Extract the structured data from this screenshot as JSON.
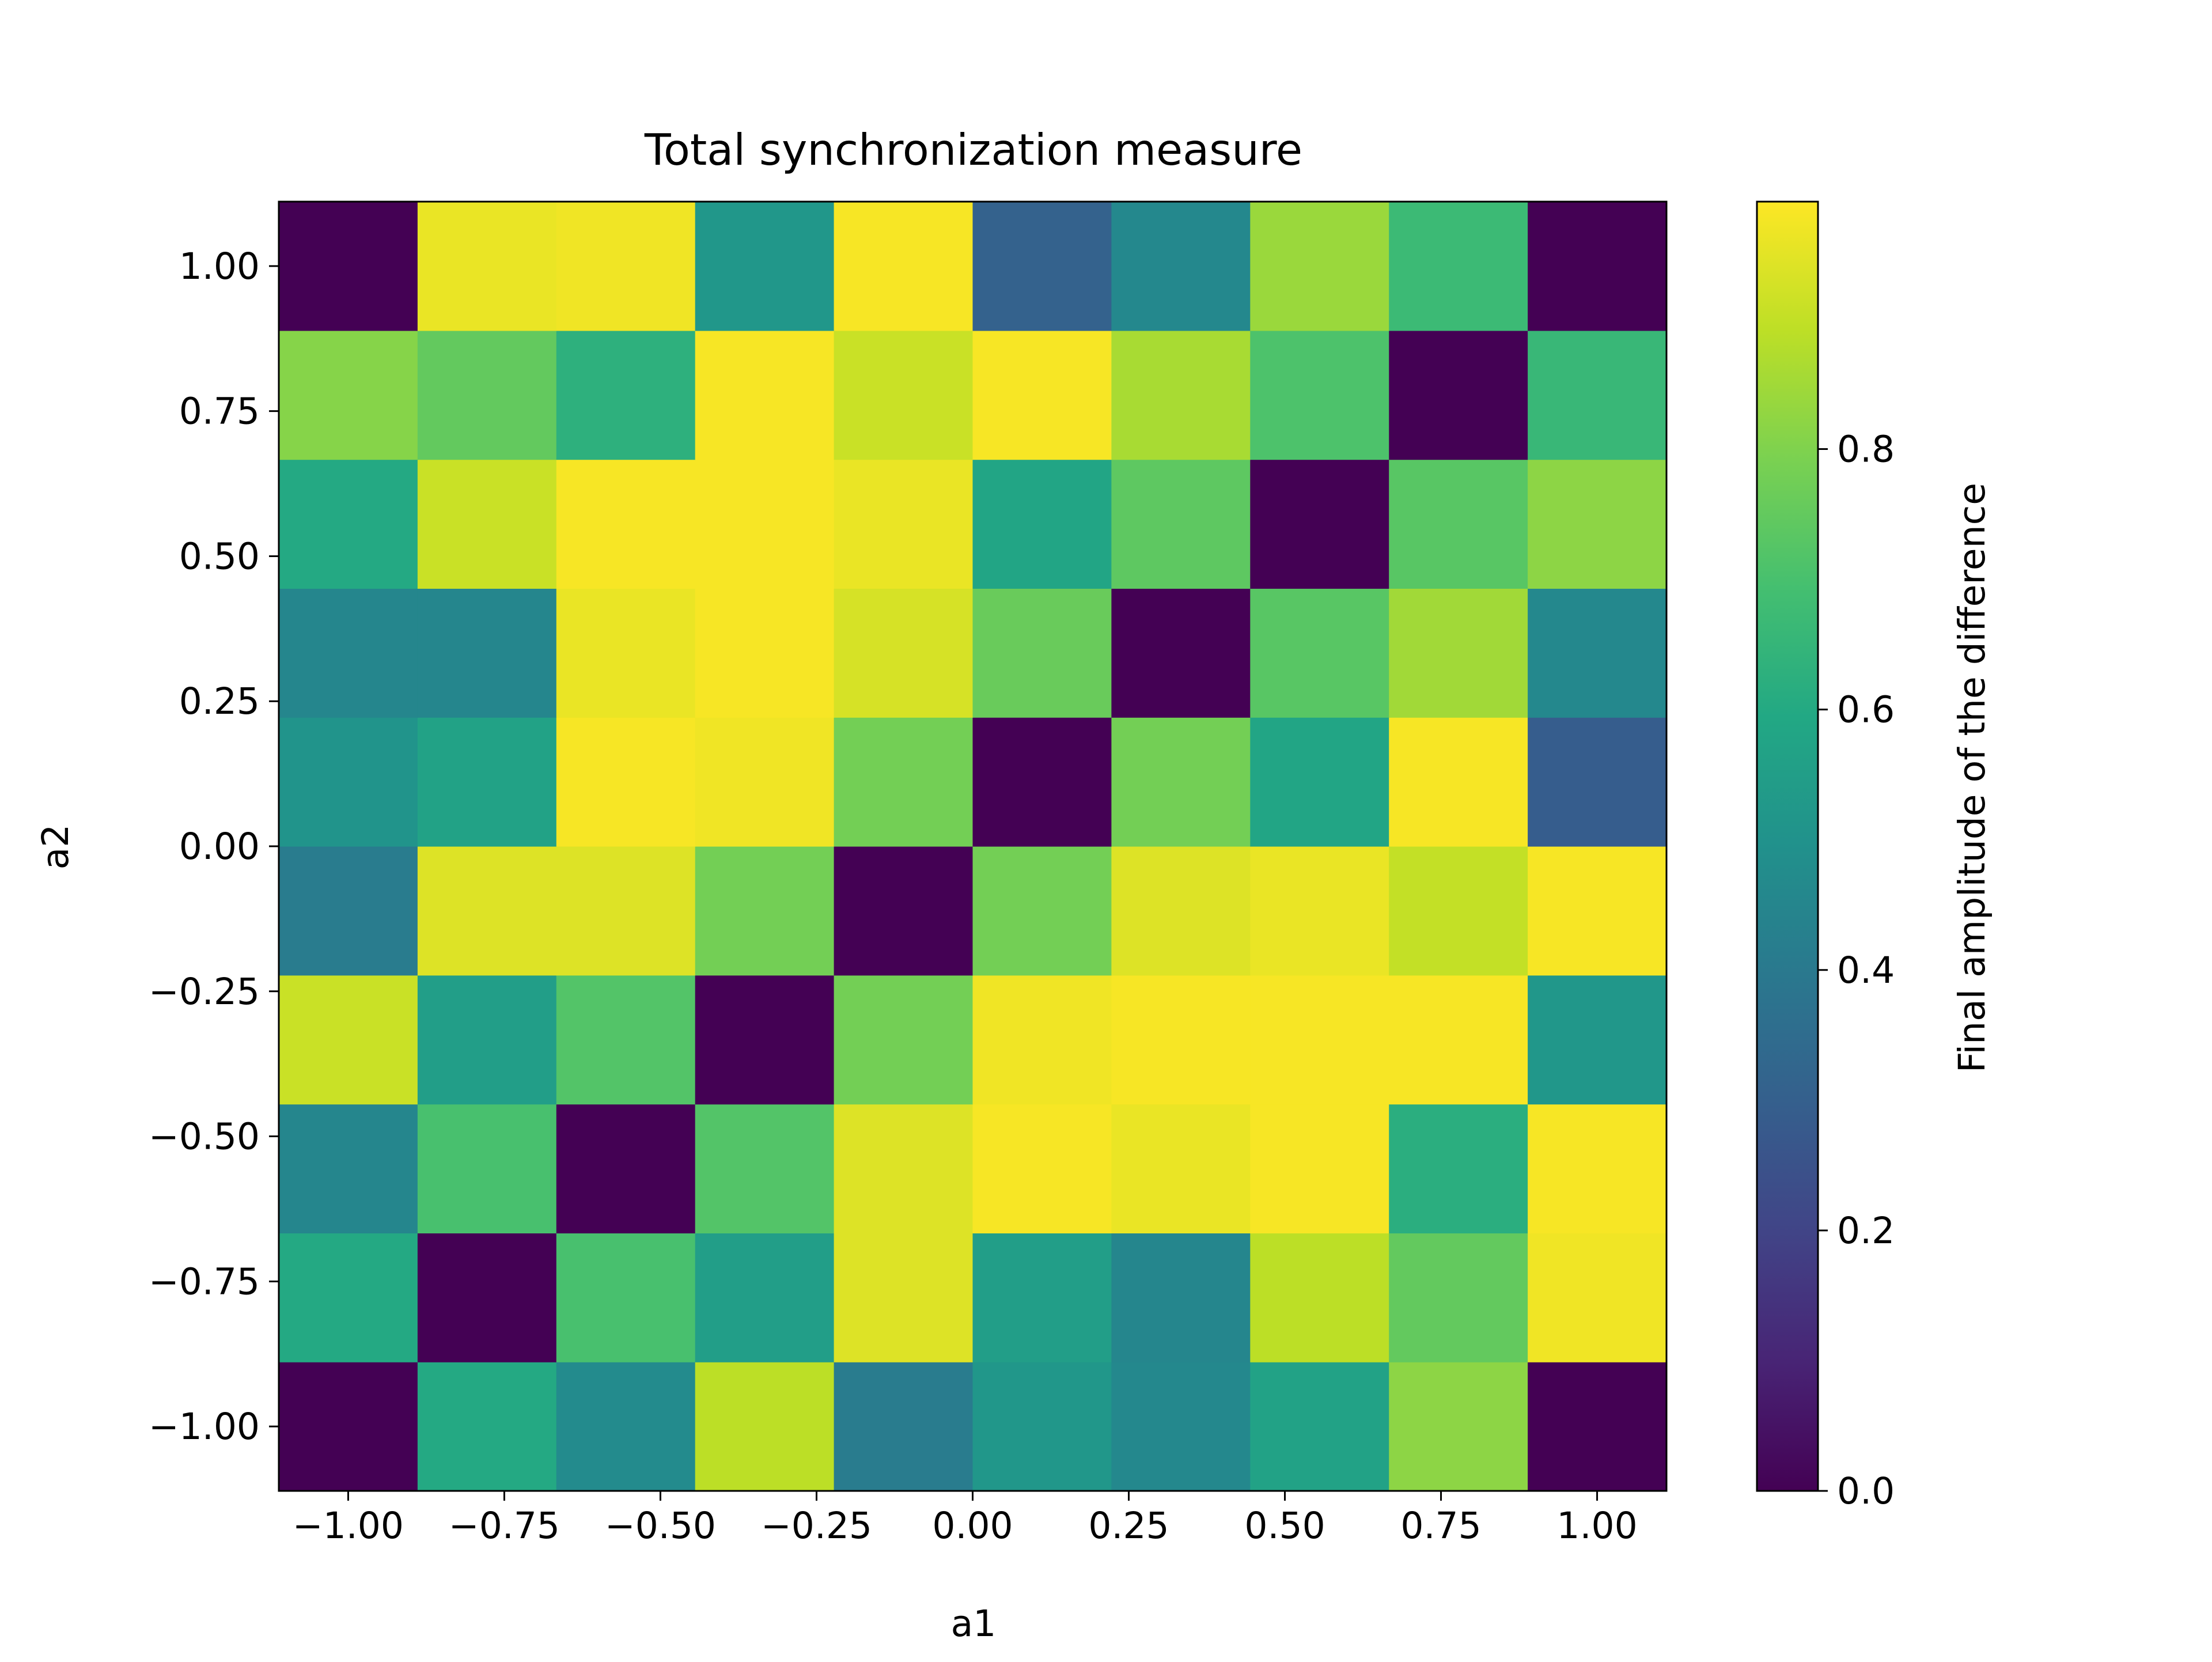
{
  "chart_data": {
    "type": "heatmap",
    "title": "Total synchronization measure",
    "xlabel": "a1",
    "ylabel": "a2",
    "colorbar_label": "Final amplitude of the difference",
    "colormap": "viridis",
    "x_centers": [
      -1.0,
      -0.7777777777777778,
      -0.5555555555555556,
      -0.3333333333333333,
      -0.1111111111111111,
      0.1111111111111111,
      0.3333333333333333,
      0.5555555555555556,
      0.7777777777777778,
      1.0
    ],
    "y_centers": [
      -1.0,
      -0.7777777777777778,
      -0.5555555555555556,
      -0.3333333333333333,
      -0.1111111111111111,
      0.1111111111111111,
      0.3333333333333333,
      0.5555555555555556,
      0.7777777777777778,
      1.0
    ],
    "xlim": [
      -1.1111111111111112,
      1.1111111111111112
    ],
    "ylim": [
      -1.1111111111111112,
      1.1111111111111112
    ],
    "x_ticks": [
      -1.0,
      -0.75,
      -0.5,
      -0.25,
      0.0,
      0.25,
      0.5,
      0.75,
      1.0
    ],
    "x_tick_labels": [
      "−1.00",
      "−0.75",
      "−0.50",
      "−0.25",
      "0.00",
      "0.25",
      "0.50",
      "0.75",
      "1.00"
    ],
    "y_ticks": [
      -1.0,
      -0.75,
      -0.5,
      -0.25,
      0.0,
      0.25,
      0.5,
      0.75,
      1.0
    ],
    "y_tick_labels": [
      "−1.00",
      "−0.75",
      "−0.50",
      "−0.25",
      "0.00",
      "0.25",
      "0.50",
      "0.75",
      "1.00"
    ],
    "colorbar_range": [
      0.0,
      0.99
    ],
    "colorbar_ticks": [
      0.0,
      0.2,
      0.4,
      0.6,
      0.8
    ],
    "colorbar_tick_labels": [
      "0.0",
      "0.2",
      "0.4",
      "0.6",
      "0.8"
    ],
    "values": [
      [
        0.0,
        0.6,
        0.47,
        0.89,
        0.41,
        0.52,
        0.46,
        0.57,
        0.82,
        0.0
      ],
      [
        0.6,
        0.0,
        0.7,
        0.55,
        0.94,
        0.55,
        0.45,
        0.89,
        0.75,
        0.97
      ],
      [
        0.45,
        0.7,
        0.0,
        0.72,
        0.94,
        0.98,
        0.96,
        0.98,
        0.62,
        0.98
      ],
      [
        0.91,
        0.55,
        0.72,
        0.0,
        0.78,
        0.97,
        0.98,
        0.98,
        0.98,
        0.52
      ],
      [
        0.41,
        0.94,
        0.94,
        0.78,
        0.0,
        0.78,
        0.94,
        0.96,
        0.9,
        0.98
      ],
      [
        0.51,
        0.57,
        0.98,
        0.97,
        0.78,
        0.0,
        0.78,
        0.58,
        0.98,
        0.29
      ],
      [
        0.45,
        0.45,
        0.96,
        0.98,
        0.93,
        0.76,
        0.0,
        0.73,
        0.85,
        0.46
      ],
      [
        0.6,
        0.91,
        0.98,
        0.98,
        0.96,
        0.58,
        0.74,
        0.0,
        0.73,
        0.82
      ],
      [
        0.81,
        0.75,
        0.63,
        0.98,
        0.91,
        0.98,
        0.86,
        0.71,
        0.0,
        0.66
      ],
      [
        0.0,
        0.96,
        0.97,
        0.52,
        0.98,
        0.31,
        0.46,
        0.84,
        0.67,
        0.0
      ]
    ]
  }
}
